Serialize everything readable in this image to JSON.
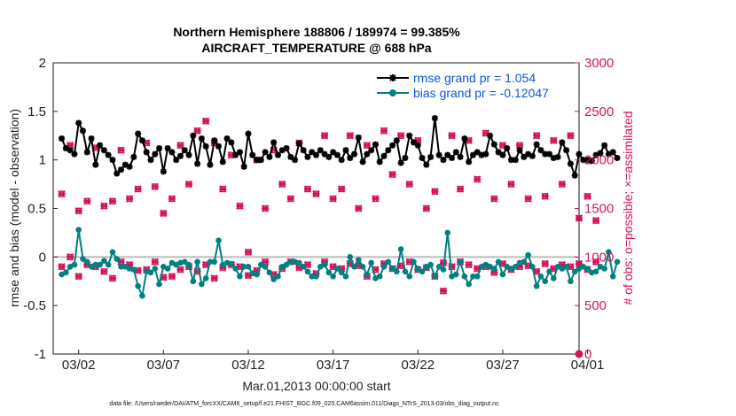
{
  "chart_data": {
    "type": "line",
    "title": "Northern Hemisphere 188806 / 189974 = 99.385%",
    "subtitle": "AIRCRAFT_TEMPERATURE @ 688 hPa",
    "xlabel": "Mar.01,2013 00:00:00 start",
    "ylabel": "rmse and bias (model - observation)",
    "ylabel_right": "# of obs: o=possible; ×=assimilated",
    "footnote": "data file: /Users/raeder/DAI/ATM_forcXX/CAM6_setup/f.e21.FHIST_BGC.f09_025.CAM6assim.011/Diags_NTrS_2013-03/obs_diag_output.nc",
    "xlim": [
      0.5,
      31.5
    ],
    "ylim": [
      -1,
      2
    ],
    "ylim_right": [
      0,
      3000
    ],
    "xtick_values": [
      2,
      7,
      12,
      17,
      22,
      27,
      32
    ],
    "xtick_labels": [
      "03/02",
      "03/07",
      "03/12",
      "03/17",
      "03/22",
      "03/27",
      "04/01"
    ],
    "ytick_labels": [
      "-1",
      "-0.5",
      "0",
      "0.5",
      "1",
      "1.5",
      "2"
    ],
    "ytick_labels_right": [
      "0",
      "500",
      "1000",
      "1500",
      "2000",
      "2500",
      "3000"
    ],
    "grid": false,
    "legend_position": "top-right",
    "colors": {
      "rmse": "#000000",
      "bias": "#008080",
      "obs": "#d4145a",
      "zero_line": "#bbbbbb"
    },
    "series": [
      {
        "name": "rmse",
        "legend": "rmse grand pr = 1.054",
        "axis": "left",
        "marker": "star",
        "x_start": 1.0,
        "x_step": 0.25,
        "values": [
          1.22,
          1.12,
          1.1,
          1.06,
          1.38,
          1.3,
          1.08,
          1.22,
          0.95,
          1.15,
          1.1,
          1.05,
          1.0,
          0.86,
          0.9,
          0.95,
          0.93,
          1.03,
          1.27,
          1.2,
          1.08,
          1.0,
          1.06,
          1.12,
          0.88,
          1.12,
          1.08,
          1.0,
          1.04,
          1.1,
          1.05,
          1.25,
          0.96,
          1.22,
          1.14,
          0.95,
          1.2,
          1.14,
          0.98,
          1.22,
          1.18,
          1.05,
          1.08,
          0.93,
          1.27,
          1.05,
          1.0,
          1.0,
          1.08,
          1.03,
          1.18,
          1.05,
          1.1,
          1.12,
          1.03,
          1.0,
          1.17,
          1.1,
          1.03,
          1.08,
          1.05,
          1.1,
          1.06,
          1.03,
          1.08,
          1.05,
          1.0,
          1.1,
          1.02,
          1.06,
          1.23,
          0.98,
          1.06,
          1.1,
          1.16,
          0.98,
          1.04,
          1.1,
          1.15,
          1.2,
          0.97,
          1.02,
          1.25,
          1.18,
          1.15,
          1.02,
          0.95,
          1.03,
          1.43,
          1.05,
          1.0,
          1.05,
          1.02,
          1.08,
          1.03,
          1.22,
          0.98,
          1.05,
          1.08,
          1.05,
          1.06,
          1.25,
          1.16,
          1.08,
          1.05,
          1.12,
          1.0,
          1.0,
          1.1,
          1.03,
          1.06,
          1.04,
          1.16,
          1.1,
          1.06,
          1.06,
          1.02,
          1.03,
          1.18,
          1.1,
          0.96,
          0.84,
          1.06,
          1.0,
          1.0,
          0.99,
          1.05,
          1.07,
          1.15,
          1.06,
          1.08,
          1.02
        ]
      },
      {
        "name": "bias",
        "legend": "bias grand pr = -0.12047",
        "axis": "left",
        "marker": "circle",
        "x_start": 1.0,
        "x_step": 0.25,
        "values": [
          -0.18,
          -0.16,
          -0.1,
          -0.08,
          0.28,
          -0.02,
          -0.05,
          -0.1,
          -0.08,
          -0.08,
          -0.04,
          -0.08,
          0.05,
          -0.02,
          -0.1,
          -0.1,
          -0.12,
          -0.13,
          -0.3,
          -0.4,
          -0.15,
          -0.16,
          -0.12,
          -0.28,
          -0.1,
          -0.12,
          -0.06,
          -0.08,
          -0.06,
          -0.05,
          -0.08,
          -0.25,
          -0.05,
          -0.28,
          -0.22,
          -0.05,
          -0.05,
          0.17,
          -0.08,
          -0.06,
          -0.07,
          -0.12,
          -0.2,
          -0.1,
          -0.1,
          -0.17,
          -0.18,
          -0.08,
          -0.1,
          -0.16,
          -0.23,
          -0.2,
          -0.1,
          -0.08,
          -0.05,
          -0.05,
          -0.06,
          -0.1,
          -0.15,
          -0.2,
          -0.2,
          -0.1,
          -0.08,
          -0.16,
          -0.2,
          -0.12,
          -0.16,
          -0.2,
          0.0,
          -0.1,
          -0.03,
          -0.1,
          -0.18,
          -0.06,
          -0.22,
          -0.2,
          -0.1,
          -0.05,
          -0.12,
          -0.15,
          0.08,
          -0.15,
          -0.2,
          -0.05,
          -0.12,
          -0.15,
          -0.1,
          -0.08,
          -0.2,
          -0.1,
          -0.13,
          0.25,
          -0.2,
          -0.18,
          -0.05,
          -0.2,
          -0.28,
          -0.2,
          -0.2,
          -0.1,
          -0.08,
          -0.1,
          -0.12,
          -0.05,
          -0.18,
          -0.1,
          -0.12,
          -0.1,
          -0.06,
          -0.05,
          0.02,
          -0.1,
          -0.3,
          -0.2,
          -0.25,
          -0.15,
          -0.22,
          -0.1,
          -0.12,
          -0.1,
          -0.25,
          -0.15,
          -0.12,
          -0.1,
          -0.12,
          -0.16,
          -0.15,
          -0.1,
          -0.12,
          0.05,
          -0.2,
          -0.05
        ]
      },
      {
        "name": "obs_assimilated",
        "axis": "right",
        "marker": "x",
        "x_start": 1.0,
        "x_step": 0.5,
        "values": [
          1650,
          2150,
          1475,
          1575,
          2125,
          1525,
          1575,
          2100,
          1600,
          1700,
          2175,
          1725,
          1450,
          1600,
          2150,
          1750,
          2300,
          2400,
          2175,
          1700,
          2050,
          1525,
          1050,
          2000,
          1500,
          2100,
          1750,
          1600,
          2175,
          1700,
          1650,
          2250,
          1600,
          1700,
          2250,
          1500,
          2150,
          1600,
          2300,
          1850,
          2250,
          1750,
          2200,
          1500,
          1675,
          650,
          2250,
          1700,
          2200,
          1800,
          2275,
          1600,
          2150,
          1750,
          2150,
          1600,
          2250,
          1625,
          2200,
          1750,
          2250,
          1400,
          1625,
          1375
        ]
      },
      {
        "name": "obs_possible",
        "axis": "right",
        "marker": "o",
        "x_start": 1.0,
        "x_step": 0.5,
        "values": [
          1650,
          2150,
          1475,
          1575,
          2125,
          1525,
          1575,
          2100,
          1600,
          1700,
          2175,
          1725,
          1450,
          1600,
          2150,
          1750,
          2300,
          2400,
          2175,
          1700,
          2050,
          1525,
          1050,
          2000,
          1500,
          2100,
          1750,
          1600,
          2175,
          1700,
          1650,
          2250,
          1600,
          1700,
          2250,
          1500,
          2150,
          1600,
          2300,
          1850,
          2250,
          1750,
          2200,
          1500,
          1675,
          650,
          2250,
          1700,
          2200,
          1800,
          2275,
          1600,
          2150,
          1750,
          2150,
          1600,
          2250,
          1625,
          2200,
          1750,
          2250,
          1400,
          1625,
          1375
        ]
      },
      {
        "name": "obs_possible_lower",
        "axis": "right",
        "marker": "o+x",
        "x_start": 1.0,
        "x_step": 0.5,
        "values": [
          900,
          1000,
          800,
          920,
          900,
          850,
          780,
          950,
          920,
          860,
          870,
          950,
          790,
          800,
          870,
          900,
          850,
          920,
          780,
          890,
          920,
          900,
          810,
          860,
          950,
          820,
          880,
          950,
          890,
          920,
          830,
          950,
          900,
          880,
          930,
          910,
          800,
          870,
          930,
          880,
          910,
          950,
          870,
          890,
          800,
          940,
          900,
          950,
          920,
          880,
          900,
          840,
          930,
          870,
          900,
          910,
          850,
          930,
          880,
          920,
          900,
          930,
          870,
          950
        ]
      }
    ],
    "zero_value": 0,
    "extra_point_right": {
      "x": 31.5,
      "value": 0
    }
  }
}
